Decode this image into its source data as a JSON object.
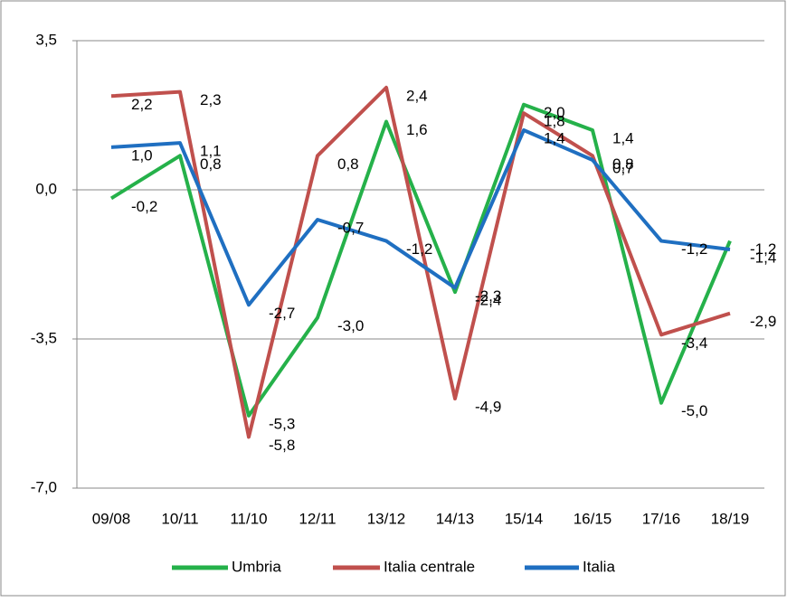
{
  "chart_data": {
    "type": "line",
    "categories": [
      "09/08",
      "10/11",
      "11/10",
      "12/11",
      "13/12",
      "14/13",
      "15/14",
      "16/15",
      "17/16",
      "18/19"
    ],
    "series": [
      {
        "name": "Umbria",
        "color": "#25b14a",
        "values": [
          -0.2,
          0.8,
          -5.3,
          -3.0,
          1.6,
          -2.4,
          2.0,
          1.4,
          -5.0,
          -1.2
        ],
        "value_labels": [
          "-0,2",
          "0,8",
          "-5,3",
          "-3,0",
          "1,6",
          "-2,4",
          "2,0",
          "1,4",
          "-5,0",
          "-1,2"
        ]
      },
      {
        "name": "Italia centrale",
        "color": "#c0504d",
        "values": [
          2.2,
          2.3,
          -5.8,
          0.8,
          2.4,
          -4.9,
          1.8,
          0.8,
          -3.4,
          -2.9
        ],
        "value_labels": [
          "2,2",
          "2,3",
          "-5,8",
          "0,8",
          "2,4",
          "-4,9",
          "1,8",
          "0,8",
          "-3,4",
          "-2,9"
        ]
      },
      {
        "name": "Italia",
        "color": "#1f6fc1",
        "values": [
          1.0,
          1.1,
          -2.7,
          -0.7,
          -1.2,
          -2.3,
          1.4,
          0.7,
          -1.2,
          -1.4
        ],
        "value_labels": [
          "1,0",
          "1,1",
          "-2,7",
          "-0,7",
          "-1,2",
          "-2,3",
          "1,4",
          "0,7",
          "-1,2",
          "-1,4"
        ]
      }
    ],
    "ylim": [
      -7.0,
      3.5
    ],
    "yticks": [
      {
        "value": -7.0,
        "label": "-7,0"
      },
      {
        "value": -3.5,
        "label": "-3,5"
      },
      {
        "value": 0.0,
        "label": "0,0"
      },
      {
        "value": 3.5,
        "label": "3,5"
      }
    ],
    "grid": true,
    "legend": "bottom"
  }
}
